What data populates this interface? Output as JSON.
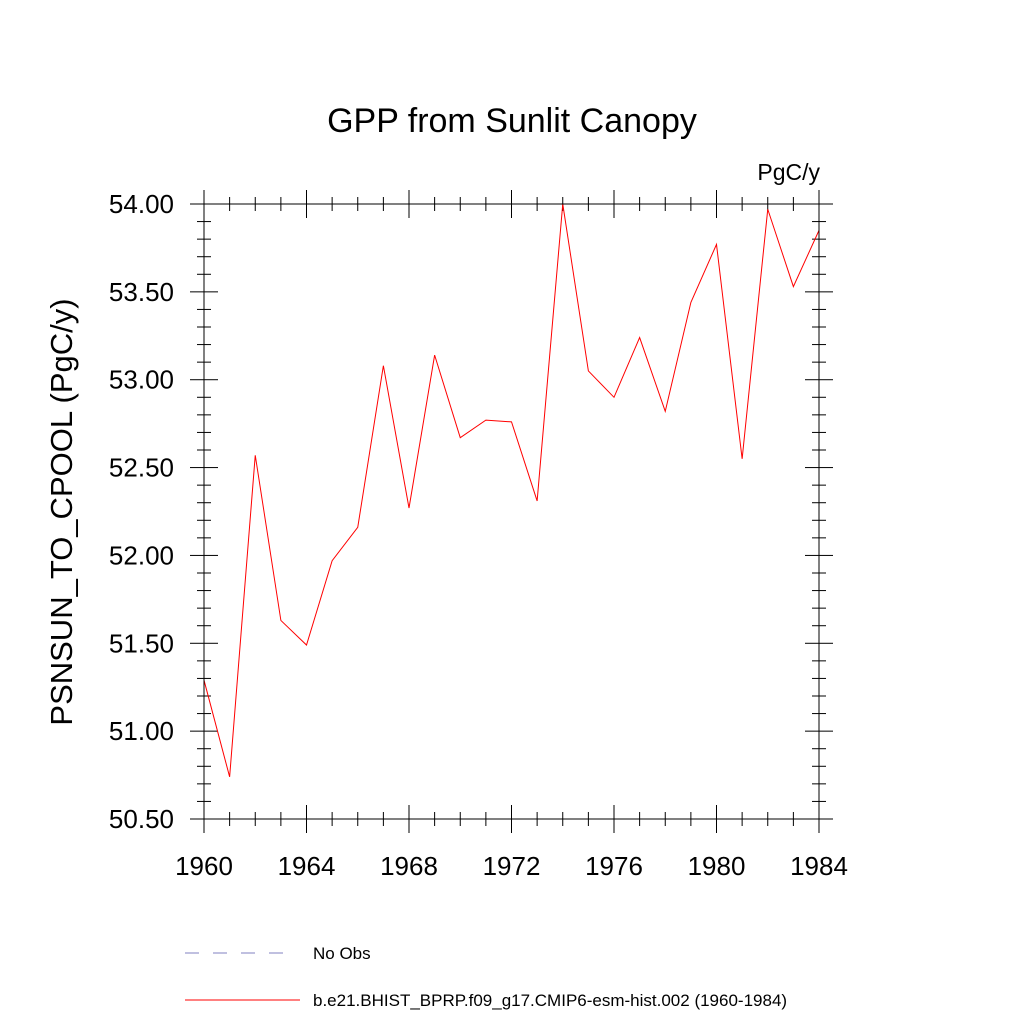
{
  "chart_data": {
    "type": "line",
    "title": "GPP from Sunlit Canopy",
    "units": "PgC/y",
    "ylabel": "PSNSUN_TO_CPOOL  (PgC/y)",
    "xlabel": "",
    "xlim": [
      1960,
      1984
    ],
    "ylim": [
      50.5,
      54.0
    ],
    "x_ticks": [
      1960,
      1964,
      1968,
      1972,
      1976,
      1980,
      1984
    ],
    "y_ticks": [
      50.5,
      51.0,
      51.5,
      52.0,
      52.5,
      53.0,
      53.5,
      54.0
    ],
    "y_tick_labels": [
      "50.50",
      "51.00",
      "51.50",
      "52.00",
      "52.50",
      "53.00",
      "53.50",
      "54.00"
    ],
    "grid": false,
    "legend_position": "bottom-left",
    "series": [
      {
        "name": "No Obs",
        "style": "dashed",
        "color": "#8080c0",
        "x": [],
        "y": []
      },
      {
        "name": "b.e21.BHIST_BPRP.f09_g17.CMIP6-esm-hist.002 (1960-1984)",
        "style": "solid",
        "color": "#ff0000",
        "x": [
          1960,
          1961,
          1962,
          1963,
          1964,
          1965,
          1966,
          1967,
          1968,
          1969,
          1970,
          1971,
          1972,
          1973,
          1974,
          1975,
          1976,
          1977,
          1978,
          1979,
          1980,
          1981,
          1982,
          1983,
          1984
        ],
        "y": [
          51.29,
          50.74,
          52.57,
          51.63,
          51.49,
          51.97,
          52.16,
          53.08,
          52.27,
          53.14,
          52.67,
          52.77,
          52.76,
          52.31,
          54.0,
          53.05,
          52.9,
          53.24,
          52.82,
          53.44,
          53.77,
          52.55,
          53.97,
          53.53,
          53.85
        ]
      }
    ]
  }
}
